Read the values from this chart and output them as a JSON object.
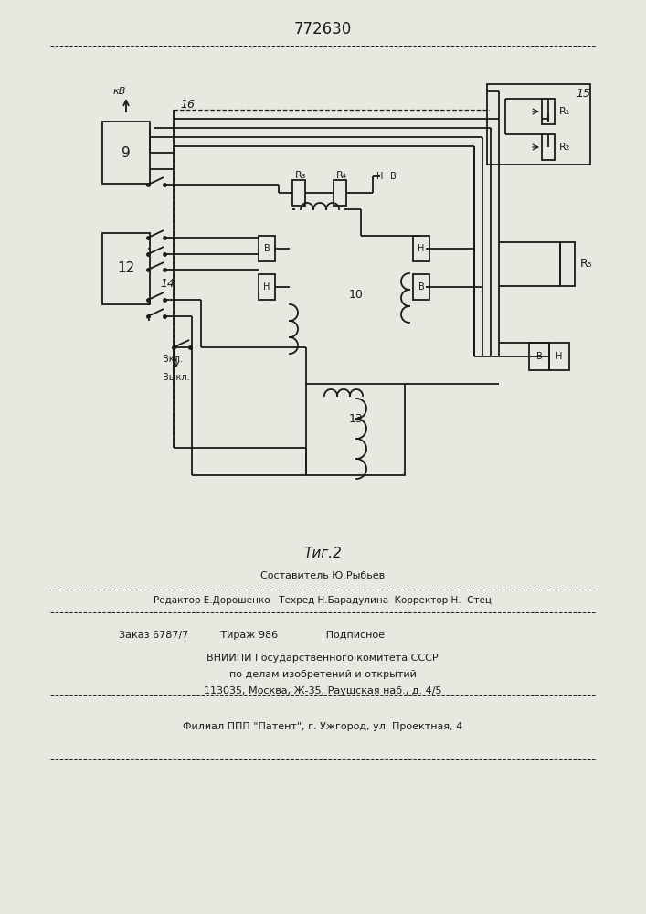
{
  "title": "772630",
  "bg_color": "#e8e8e0",
  "line_color": "#1a1a1a",
  "fig_caption": "Τиг.2",
  "footer_line1": "Составитель Ю.Рыбьев",
  "footer_line2": "Редактор Е.Дорошенко   Техред Н.Барадулина  Корректор Н.  Стец",
  "footer_line3": "Заказ 6787/7          Тираж 986               Подписное",
  "footer_line4": "ВНИИПИ Государственного комитета СССР",
  "footer_line5": "по делам изобретений и открытий",
  "footer_line6": "113035, Москва, Ж-35, Раушская наб., д. 4/5",
  "footer_line7": "Филиал ППП \"Патент\", г. Ужгород, ул. Проектная, 4"
}
